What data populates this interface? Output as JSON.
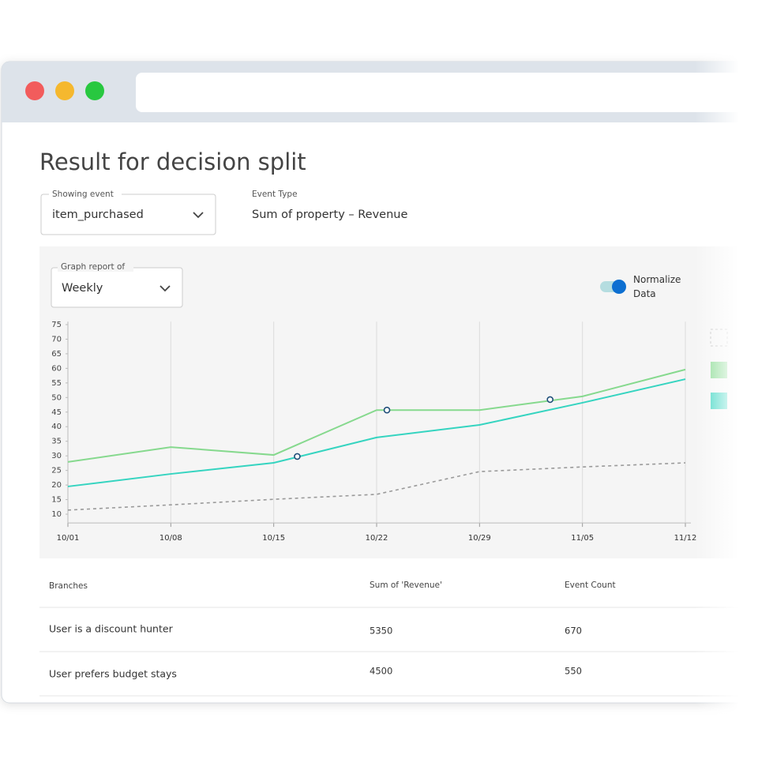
{
  "header": {
    "title": "Result for decision split"
  },
  "controls": {
    "showing_event": {
      "label": "Showing event",
      "value": "item_purchased"
    },
    "event_type": {
      "label": "Event Type",
      "value": "Sum of property – Revenue"
    },
    "graph_report": {
      "label": "Graph report of",
      "value": "Weekly"
    },
    "normalize": {
      "label": "Normalize Data",
      "on": true
    }
  },
  "chart_data": {
    "type": "line",
    "x": [
      0,
      7,
      14,
      21,
      28,
      35,
      42
    ],
    "xlim": [
      0,
      42
    ],
    "xticks": [
      {
        "value": 0,
        "label": "10/01"
      },
      {
        "value": 7,
        "label": "10/08"
      },
      {
        "value": 14,
        "label": "10/15"
      },
      {
        "value": 21,
        "label": "10/22"
      },
      {
        "value": 28,
        "label": "10/29"
      },
      {
        "value": 35,
        "label": "11/05"
      },
      {
        "value": 42,
        "label": "11/12"
      }
    ],
    "ylim": [
      7,
      76
    ],
    "yticks": [
      10,
      15,
      20,
      25,
      30,
      35,
      40,
      45,
      50,
      55,
      60,
      65,
      70,
      75
    ],
    "grid": "x",
    "series": [
      {
        "color": "#9a9a9a",
        "dashed": true,
        "values": [
          11.4,
          13.2,
          15.1,
          16.8,
          24.6,
          26.2,
          27.6
        ]
      },
      {
        "color": "#86d98e",
        "dashed": false,
        "values": [
          27.9,
          33,
          30.3,
          45.7,
          45.7,
          50.4,
          59.6
        ]
      },
      {
        "color": "#35d4c0",
        "dashed": false,
        "values": [
          19.5,
          23.8,
          27.6,
          36.3,
          40.6,
          48.2,
          56.3
        ]
      }
    ],
    "markers": {
      "color": "#1f4e79",
      "x": [
        15.6,
        21.7,
        32.8
      ],
      "y": [
        29.8,
        45.7,
        49.3
      ]
    }
  },
  "table": {
    "headers": [
      "Branches",
      "Sum of 'Revenue'",
      "Event Count"
    ],
    "rows": [
      [
        "User is a discount hunter",
        "5350",
        "670"
      ],
      [
        "User prefers budget stays",
        "4500",
        "550"
      ]
    ]
  }
}
